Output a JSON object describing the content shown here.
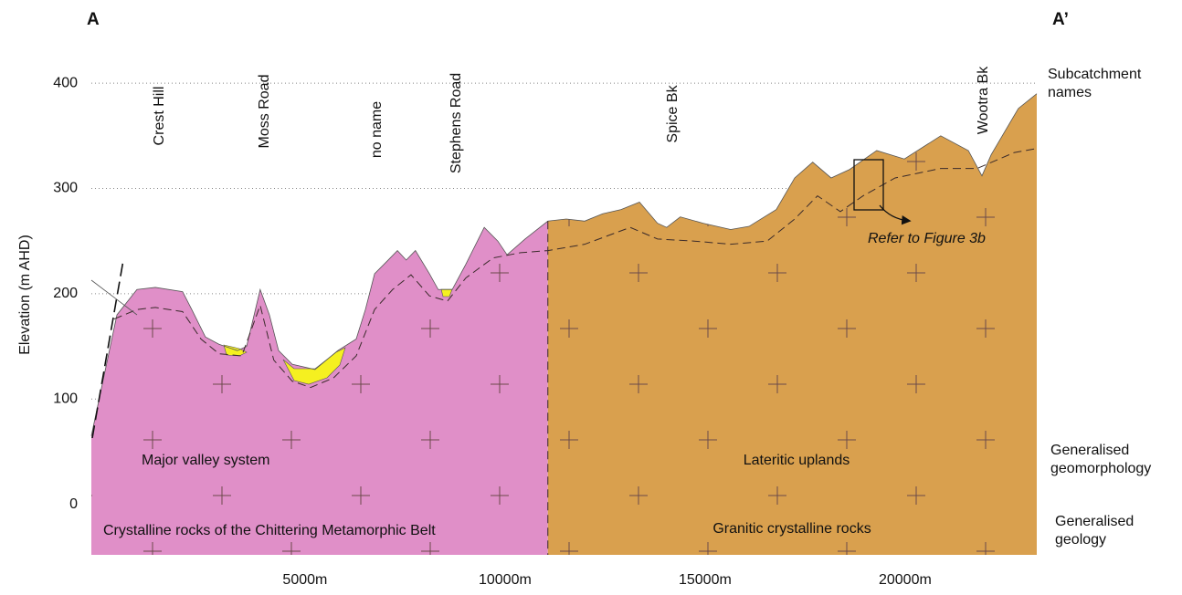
{
  "chart_data": {
    "type": "cross-section",
    "start_label": "A",
    "end_label": "A’",
    "y_label": "Elevation (m AHD)",
    "subcatchment_heading": "Subcatchment names",
    "subcatchments": [
      "Crest Hill",
      "Moss Road",
      "no name",
      "Stephens Road",
      "Spice Bk",
      "Wootra Bk"
    ],
    "geomorphology_heading": "Generalised geomorphology",
    "geology_heading": "Generalised geology",
    "annotation": "Refer to Figure 3b",
    "units": [
      {
        "geomorphology": "Major valley system",
        "geology": "Crystalline rocks of the Chittering Metamorphic Belt",
        "color": "#e08fc8"
      },
      {
        "geomorphology": "Lateritic uplands",
        "geology": "Granitic crystalline rocks",
        "color": "#d9a04e"
      }
    ],
    "boundary_x": 11070,
    "surface": {
      "x": [
        -340,
        300,
        570,
        800,
        1260,
        1940,
        2170,
        2510,
        2850,
        3310,
        3540,
        3880,
        4110,
        4340,
        4680,
        5250,
        5820,
        6280,
        6510,
        6740,
        7080,
        7310,
        7530,
        7760,
        8110,
        8330,
        8680,
        9020,
        9480,
        9820,
        10050,
        10500,
        11070,
        11530,
        11990,
        12440,
        12900,
        13360,
        13810,
        14040,
        14380,
        14950,
        15640,
        16100,
        16780,
        17240,
        17690,
        18150,
        18610,
        19290,
        19980,
        20890,
        21580,
        21920,
        22150,
        22830,
        23290
      ],
      "values": [
        65,
        180,
        193,
        204,
        206,
        202,
        185,
        159,
        152,
        146,
        150,
        204,
        180,
        146,
        133,
        128,
        146,
        157,
        185,
        219,
        232,
        241,
        232,
        241,
        219,
        204,
        204,
        228,
        263,
        250,
        237,
        252,
        269,
        271,
        269,
        276,
        280,
        287,
        267,
        263,
        273,
        267,
        261,
        264,
        280,
        310,
        325,
        310,
        318,
        336,
        328,
        350,
        336,
        312,
        332,
        376,
        390
      ]
    },
    "weathering_front": {
      "x": [
        230,
        800,
        1260,
        1940,
        2400,
        2850,
        3420,
        3880,
        4220,
        4680,
        5140,
        5710,
        6280,
        6740,
        7190,
        7650,
        8110,
        8560,
        9020,
        9700,
        10390,
        11070,
        11990,
        13130,
        13810,
        14730,
        15640,
        16550,
        17240,
        17810,
        18380,
        18950,
        19750,
        20890,
        21800,
        22720,
        23290
      ],
      "values": [
        176,
        185,
        187,
        183,
        157,
        143,
        141,
        189,
        137,
        117,
        111,
        120,
        141,
        185,
        204,
        218,
        198,
        193,
        215,
        234,
        239,
        241,
        247,
        263,
        252,
        250,
        247,
        250,
        271,
        293,
        278,
        293,
        310,
        319,
        319,
        334,
        338
      ]
    },
    "xlim": [
      -340,
      23290
    ],
    "ylim": [
      -48,
      440
    ],
    "xticks": [
      {
        "value": 5000,
        "label": "5000m"
      },
      {
        "value": 10000,
        "label": "10000m"
      },
      {
        "value": 15000,
        "label": "15000m"
      },
      {
        "value": 20000,
        "label": "20000m"
      }
    ],
    "yticks": [
      0,
      100,
      200,
      300,
      400
    ],
    "grid": true
  }
}
